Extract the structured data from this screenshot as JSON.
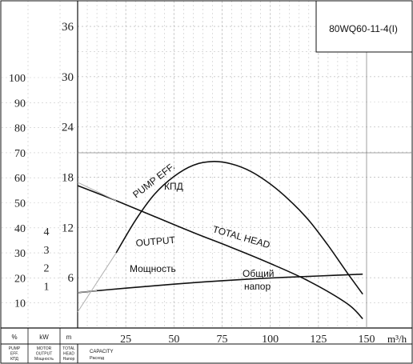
{
  "chart_data": {
    "type": "line",
    "model": "80WQ60-11-4(I)",
    "x_label": "m³/h",
    "x_ticks": [
      25,
      50,
      75,
      100,
      125,
      150
    ],
    "xlim": [
      0,
      150
    ],
    "axes": {
      "head": {
        "unit": "m",
        "ticks": [
          6,
          12,
          18,
          24,
          30,
          36
        ],
        "range": [
          0,
          36
        ]
      },
      "efficiency": {
        "unit": "%",
        "ticks": [
          10,
          20,
          30,
          40,
          50,
          60,
          70,
          80,
          90,
          100
        ],
        "range": [
          0,
          100
        ]
      },
      "power": {
        "unit": "kW",
        "ticks": [
          1,
          2,
          3,
          4
        ],
        "range": [
          0,
          4
        ]
      }
    },
    "series": [
      {
        "name": "TOTAL HEAD",
        "label_ru": "Общий напор",
        "axis": "head",
        "x": [
          0,
          20,
          40,
          60,
          80,
          100,
          120,
          140,
          148
        ],
        "y": [
          17,
          15.2,
          13.3,
          11.4,
          9.6,
          7.7,
          5.6,
          2.9,
          1.1
        ]
      },
      {
        "name": "PUMP EFF.",
        "label_ru": "КПД",
        "axis": "efficiency",
        "x": [
          20,
          30,
          40,
          50,
          60,
          70,
          80,
          90,
          100,
          110,
          120,
          130,
          140,
          148
        ],
        "y": [
          30,
          43,
          53.5,
          60.5,
          65,
          66.5,
          65.5,
          62.5,
          57.5,
          51,
          43,
          33,
          22,
          13.5
        ]
      },
      {
        "name": "OUTPUT",
        "label_ru": "Мощность",
        "axis": "power",
        "x": [
          0,
          10,
          25,
          50,
          75,
          100,
          125,
          148
        ],
        "y": [
          0.62,
          0.73,
          0.87,
          1.09,
          1.28,
          1.43,
          1.54,
          1.64
        ]
      }
    ]
  },
  "left_axis": {
    "headers": [
      "%",
      "kW",
      "m"
    ],
    "subheaders": [
      [
        "PUMP",
        "EFF.",
        "КПД"
      ],
      [
        "MOTOR",
        "OUTPUT",
        "Мощность"
      ],
      [
        "TOTAL",
        "HEAD",
        "Напор"
      ]
    ]
  },
  "footer": {
    "capacity": "CAPACITY",
    "capacity_ru": "Расход"
  },
  "colors": {
    "line": "#111111",
    "grid": "#c8c8c8",
    "light_line": "#b0b0b0",
    "ink": "#222222"
  }
}
